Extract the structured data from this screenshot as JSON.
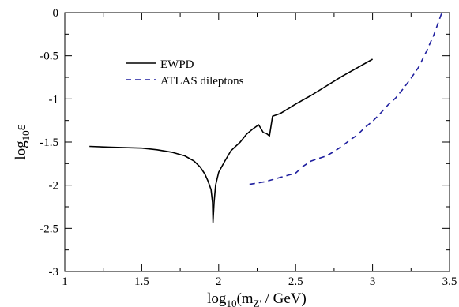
{
  "chart_data": {
    "type": "line",
    "title": "",
    "xlabel": {
      "base": "log",
      "sub": "10",
      "open": "(m",
      "sub2": "Z'",
      "close": " / GeV)"
    },
    "ylabel": {
      "base": "log",
      "sub": "10",
      "symbol": "ε"
    },
    "xlim": [
      1,
      3.5
    ],
    "ylim": [
      -3,
      0
    ],
    "x_ticks": [
      1,
      1.5,
      2,
      2.5,
      3,
      3.5
    ],
    "x_tick_labels": [
      "1",
      "1.5",
      "2",
      "2.5",
      "3",
      "3.5"
    ],
    "y_ticks": [
      0,
      -0.5,
      -1,
      -1.5,
      -2,
      -2.5,
      -3
    ],
    "y_tick_labels": [
      "0",
      "-0.5",
      "-1",
      "-1.5",
      "-2",
      "-2.5",
      "-3"
    ],
    "grid": false,
    "legend_position": "upper-left",
    "series": [
      {
        "name": "EWPD",
        "color": "#000000",
        "dash": "solid",
        "x": [
          1.16,
          1.3,
          1.5,
          1.6,
          1.7,
          1.78,
          1.84,
          1.88,
          1.91,
          1.93,
          1.95,
          1.96,
          1.963,
          1.97,
          1.98,
          2.0,
          2.04,
          2.08,
          2.14,
          2.18,
          2.22,
          2.26,
          2.29,
          2.31,
          2.33,
          2.35,
          2.4,
          2.5,
          2.6,
          2.8,
          3.0
        ],
        "y": [
          -1.55,
          -1.56,
          -1.57,
          -1.59,
          -1.62,
          -1.66,
          -1.72,
          -1.79,
          -1.87,
          -1.95,
          -2.05,
          -2.2,
          -2.43,
          -2.2,
          -2.0,
          -1.85,
          -1.72,
          -1.6,
          -1.5,
          -1.41,
          -1.35,
          -1.3,
          -1.39,
          -1.4,
          -1.43,
          -1.2,
          -1.17,
          -1.06,
          -0.96,
          -0.74,
          -0.54
        ]
      },
      {
        "name": "ATLAS dileptons",
        "color": "#1f1f9f",
        "dash": "dashed",
        "x": [
          2.2,
          2.3,
          2.4,
          2.5,
          2.55,
          2.6,
          2.65,
          2.7,
          2.75,
          2.8,
          2.85,
          2.9,
          2.95,
          3.0,
          3.05,
          3.1,
          3.15,
          3.2,
          3.25,
          3.3,
          3.35,
          3.4,
          3.45
        ],
        "y": [
          -1.99,
          -1.96,
          -1.91,
          -1.86,
          -1.78,
          -1.72,
          -1.69,
          -1.66,
          -1.61,
          -1.55,
          -1.48,
          -1.42,
          -1.33,
          -1.26,
          -1.17,
          -1.07,
          -0.99,
          -0.88,
          -0.76,
          -0.63,
          -0.45,
          -0.25,
          0.0
        ]
      }
    ]
  }
}
